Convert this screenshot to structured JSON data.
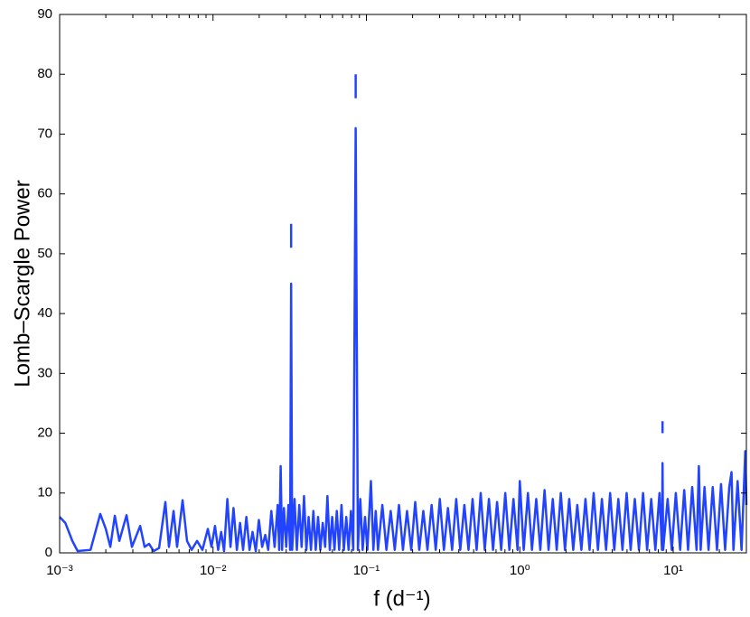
{
  "chart_data": {
    "type": "line",
    "xlabel": "f (d⁻¹)",
    "ylabel": "Lomb–Scargle Power",
    "xscale": "log",
    "color": "#2244ff",
    "xlim": [
      0.001,
      30
    ],
    "ylim": [
      0,
      90
    ],
    "xticks": [
      {
        "value": 0.001,
        "label": "10⁻³"
      },
      {
        "value": 0.01,
        "label": "10⁻²"
      },
      {
        "value": 0.1,
        "label": "10⁻¹"
      },
      {
        "value": 1,
        "label": "10⁰"
      },
      {
        "value": 10,
        "label": "10¹"
      }
    ],
    "yticks": [
      0,
      10,
      20,
      30,
      40,
      50,
      60,
      70,
      80,
      90
    ],
    "x": [
      0.001,
      0.00109,
      0.00121,
      0.00131,
      0.00159,
      0.00184,
      0.002,
      0.00214,
      0.00229,
      0.00245,
      0.00273,
      0.00296,
      0.00335,
      0.00358,
      0.00383,
      0.0041,
      0.00445,
      0.00489,
      0.00516,
      0.00553,
      0.00583,
      0.00633,
      0.00677,
      0.00725,
      0.00787,
      0.00853,
      0.00925,
      0.00977,
      0.0103,
      0.0108,
      0.0113,
      0.0118,
      0.0124,
      0.013,
      0.0136,
      0.0143,
      0.015,
      0.0157,
      0.0165,
      0.0173,
      0.0181,
      0.019,
      0.0199,
      0.0209,
      0.0219,
      0.0229,
      0.024,
      0.0252,
      0.0264,
      0.027,
      0.0276,
      0.0282,
      0.029,
      0.03,
      0.031,
      0.0318,
      0.0323,
      0.0328,
      0.034,
      0.0352,
      0.0365,
      0.0378,
      0.0392,
      0.0406,
      0.042,
      0.0435,
      0.0451,
      0.0467,
      0.0484,
      0.0501,
      0.0519,
      0.0538,
      0.0557,
      0.0577,
      0.0598,
      0.0619,
      0.0641,
      0.0664,
      0.0688,
      0.0713,
      0.0739,
      0.0765,
      0.0793,
      0.0821,
      0.0851,
      0.088,
      0.0912,
      0.0945,
      0.0979,
      0.1014,
      0.107,
      0.111,
      0.115,
      0.119,
      0.127,
      0.135,
      0.144,
      0.153,
      0.163,
      0.173,
      0.184,
      0.196,
      0.208,
      0.221,
      0.235,
      0.25,
      0.266,
      0.283,
      0.301,
      0.32,
      0.34,
      0.362,
      0.385,
      0.409,
      0.435,
      0.463,
      0.492,
      0.523,
      0.556,
      0.591,
      0.629,
      0.669,
      0.711,
      0.756,
      0.804,
      0.855,
      0.909,
      0.967,
      1.0,
      1.06,
      1.13,
      1.2,
      1.28,
      1.36,
      1.45,
      1.54,
      1.64,
      1.74,
      1.85,
      1.97,
      2.1,
      2.23,
      2.37,
      2.52,
      2.68,
      2.85,
      3.03,
      3.23,
      3.43,
      3.65,
      3.88,
      4.13,
      4.39,
      4.67,
      4.97,
      5.28,
      5.62,
      5.98,
      6.36,
      6.76,
      7.19,
      7.65,
      8.14,
      8.45,
      8.52,
      8.6,
      9.2,
      9.79,
      10.4,
      11.1,
      11.8,
      12.5,
      13.3,
      14.2,
      14.7,
      15.1,
      16.0,
      17.0,
      18.1,
      19.3,
      20.5,
      21.8,
      23.2,
      24.0,
      24.7,
      26.3,
      27.9,
      29.5,
      30,
      0.0323,
      0.0323,
      0.0323,
      0.0851,
      0.0851,
      0.0851,
      8.52,
      8.52,
      8.52
    ],
    "values": [
      6,
      5,
      2,
      0.3,
      0.5,
      6.5,
      4,
      1,
      6.2,
      2,
      6.3,
      1,
      4.5,
      1,
      1.5,
      0.3,
      0.8,
      8.5,
      1,
      7,
      1,
      8.8,
      2,
      0.5,
      2,
      0.5,
      4,
      1,
      4.5,
      0.5,
      3.5,
      0.3,
      9,
      1,
      7.5,
      0.5,
      5,
      0.5,
      6,
      0.5,
      3.5,
      0.3,
      5.5,
      1,
      3,
      0.5,
      7,
      1,
      8,
      0.5,
      14.5,
      0.5,
      7.5,
      1,
      8,
      0.5,
      45,
      0.5,
      9,
      0.5,
      8,
      1,
      9.5,
      0.5,
      6,
      0.5,
      7,
      0.5,
      6,
      0.5,
      5,
      1,
      9.5,
      0.5,
      6,
      0.5,
      7,
      0.5,
      8,
      0.5,
      6,
      0.5,
      7,
      0.5,
      71,
      0.5,
      9,
      0.5,
      6,
      0.5,
      12,
      0.5,
      7,
      0.5,
      8,
      0.5,
      7,
      0.5,
      8,
      0.5,
      7,
      0.5,
      8.5,
      0.5,
      7,
      0.5,
      8,
      0.5,
      9,
      0.5,
      7.5,
      0.5,
      9,
      0.5,
      8,
      0.5,
      9,
      0.5,
      10,
      0.5,
      9,
      0.5,
      8.5,
      0.5,
      10,
      0.5,
      9,
      0.5,
      12,
      0.5,
      10,
      0.5,
      9,
      0.5,
      10.5,
      0.5,
      9,
      0.5,
      10,
      0.5,
      9,
      0.5,
      8,
      0.5,
      9,
      0.5,
      10,
      0.5,
      9,
      0.5,
      10,
      0.5,
      9,
      0.5,
      10,
      0.5,
      9,
      0.5,
      10,
      0.5,
      9,
      0.5,
      10,
      0.5,
      15,
      0.5,
      9,
      0.5,
      10,
      0.5,
      10.5,
      0.5,
      11,
      0.5,
      14.5,
      0.5,
      11,
      0.5,
      11,
      0.5,
      11.5,
      0.5,
      11,
      13.5,
      0.5,
      12,
      0.5,
      17,
      8,
      null,
      51,
      55,
      null,
      76,
      80,
      null,
      20,
      22
    ]
  }
}
